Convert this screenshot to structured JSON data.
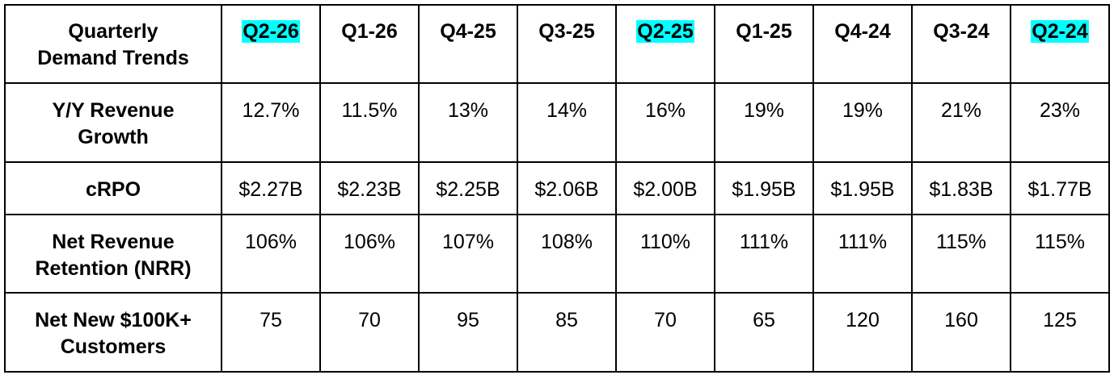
{
  "table": {
    "header": [
      "Quarterly\nDemand Trends",
      "Q2-26",
      "Q1-26",
      "Q4-25",
      "Q3-25",
      "Q2-25",
      "Q1-25",
      "Q4-24",
      "Q3-24",
      "Q2-24"
    ],
    "highlighted": [
      false,
      true,
      false,
      false,
      false,
      true,
      false,
      false,
      false,
      true
    ],
    "highlight_color": "#00ffff",
    "rows": [
      [
        "Y/Y Revenue\nGrowth",
        "12.7%",
        "11.5%",
        "13%",
        "14%",
        "16%",
        "19%",
        "19%",
        "21%",
        "23%"
      ],
      [
        "cRPO",
        "$2.27B",
        "$2.23B",
        "$2.25B",
        "$2.06B",
        "$2.00B",
        "$1.95B",
        "$1.95B",
        "$1.83B",
        "$1.77B"
      ],
      [
        "Net Revenue\nRetention (NRR)",
        "106%",
        "106%",
        "107%",
        "108%",
        "110%",
        "111%",
        "111%",
        "115%",
        "115%"
      ],
      [
        "Net New $100K+\nCustomers",
        "75",
        "70",
        "95",
        "85",
        "70",
        "65",
        "120",
        "160",
        "125"
      ]
    ]
  }
}
